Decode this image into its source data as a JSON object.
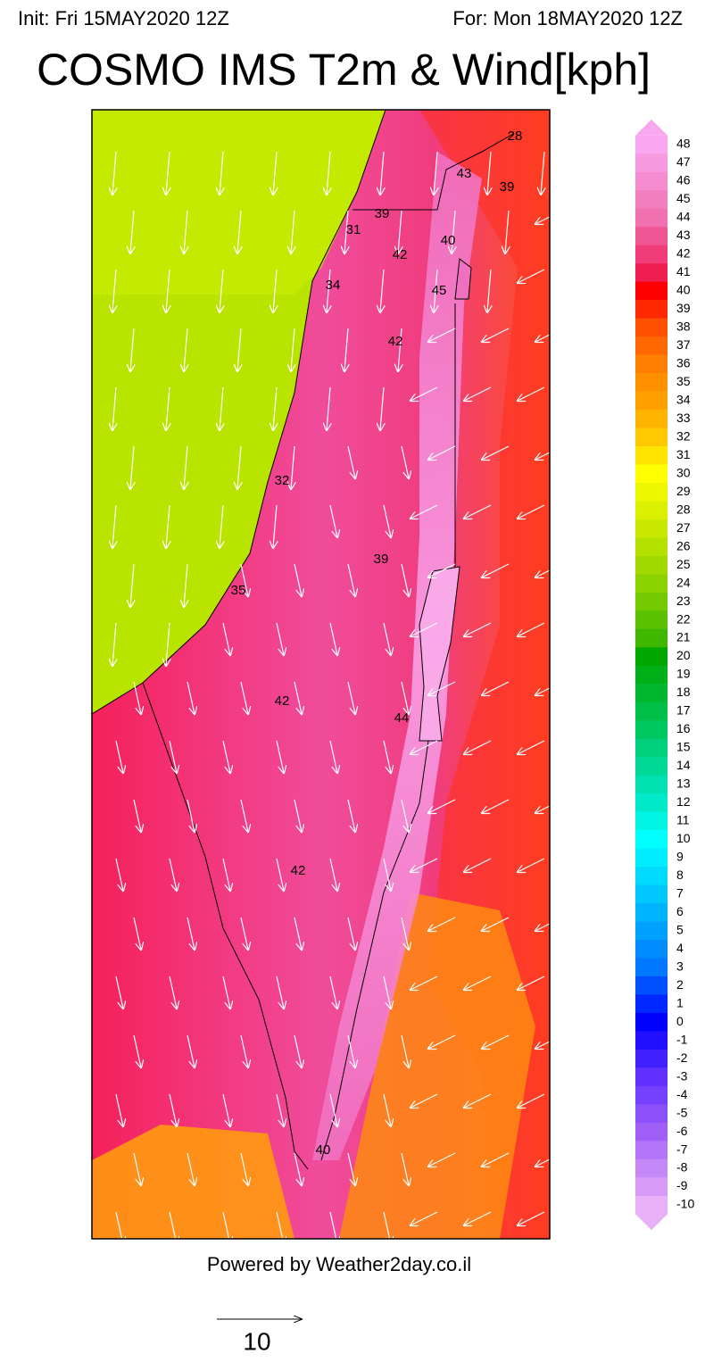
{
  "header": {
    "init": "Init: Fri 15MAY2020 12Z",
    "valid": "For: Mon 18MAY2020 12Z",
    "title": "COSMO IMS T2m & Wind[kph]"
  },
  "map": {
    "temperature_labels": [
      28,
      43,
      39,
      39,
      31,
      40,
      42,
      34,
      45,
      42,
      32,
      39,
      35,
      42,
      44,
      42,
      40
    ]
  },
  "colorbar": {
    "levels": [
      48,
      47,
      46,
      45,
      44,
      43,
      42,
      41,
      40,
      39,
      38,
      37,
      36,
      35,
      34,
      33,
      32,
      31,
      30,
      29,
      28,
      27,
      26,
      25,
      24,
      23,
      22,
      21,
      20,
      19,
      18,
      17,
      16,
      15,
      14,
      13,
      12,
      11,
      10,
      9,
      8,
      7,
      6,
      5,
      4,
      3,
      2,
      1,
      0,
      -1,
      -2,
      -3,
      -4,
      -5,
      -6,
      -7,
      -8,
      -9,
      -10
    ]
  },
  "footer": {
    "credit": "Powered by Weather2day.co.il",
    "wind_scale": 10
  }
}
